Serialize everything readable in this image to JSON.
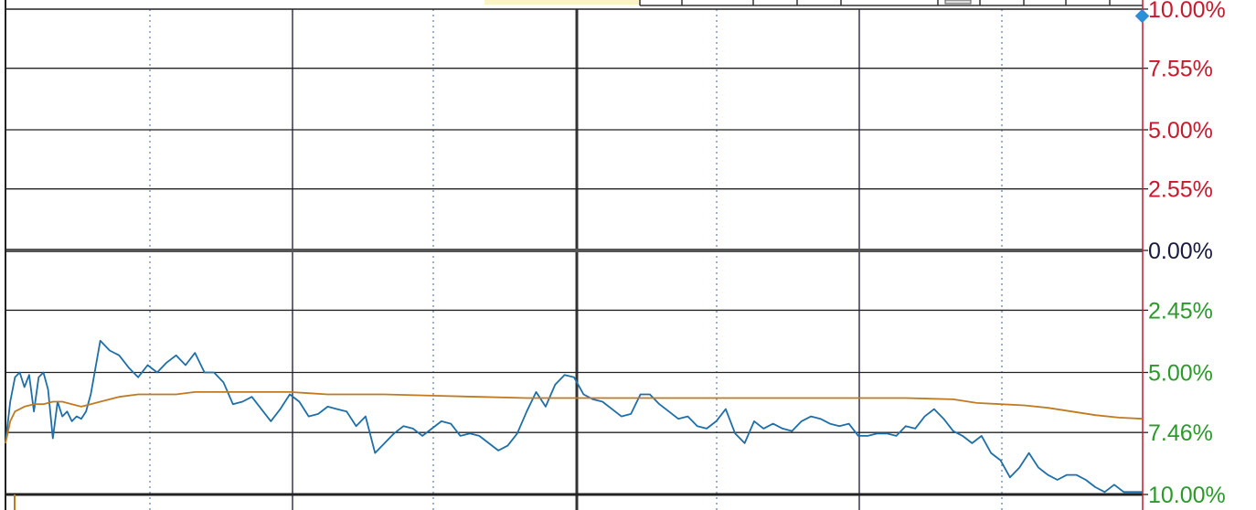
{
  "chart_data": {
    "type": "line",
    "title": "",
    "xlabel": "",
    "ylabel": "",
    "ylim": [
      -10,
      10
    ],
    "x_range": [
      0,
      240
    ],
    "y_tick_labels": [
      {
        "value": 10,
        "label": "10.00%",
        "color": "#c8192c"
      },
      {
        "value": 7.55,
        "label": "7.55%",
        "color": "#c8192c"
      },
      {
        "value": 5,
        "label": "5.00%",
        "color": "#c8192c"
      },
      {
        "value": 2.55,
        "label": "2.55%",
        "color": "#c8192c"
      },
      {
        "value": 0,
        "label": "0.00%",
        "color": "#1a1a40"
      },
      {
        "value": -2.45,
        "label": "2.45%",
        "color": "#2a9a2a"
      },
      {
        "value": -5,
        "label": "5.00%",
        "color": "#2a9a2a"
      },
      {
        "value": -7.46,
        "label": "7.46%",
        "color": "#2a9a2a"
      },
      {
        "value": -10,
        "label": "10.00%",
        "color": "#2a9a2a"
      }
    ],
    "grid": true,
    "series": [
      {
        "color": "#1e6ea8",
        "x": [
          0,
          1,
          2,
          3,
          4,
          5,
          6,
          7,
          8,
          9,
          10,
          11,
          12,
          13,
          14,
          15,
          16,
          17,
          18,
          19,
          20,
          22,
          24,
          26,
          28,
          30,
          32,
          34,
          36,
          38,
          40,
          42,
          44,
          46,
          48,
          50,
          52,
          54,
          56,
          58,
          60,
          62,
          64,
          66,
          68,
          70,
          72,
          74,
          76,
          78,
          80,
          82,
          84,
          86,
          88,
          90,
          92,
          94,
          96,
          98,
          100,
          102,
          104,
          106,
          108,
          110,
          112,
          114,
          116,
          118,
          120,
          122,
          124,
          126,
          128,
          130,
          132,
          134,
          136,
          138,
          140,
          142,
          144,
          146,
          148,
          150,
          152,
          154,
          156,
          158,
          160,
          162,
          164,
          166,
          168,
          170,
          172,
          174,
          176,
          178,
          180,
          182,
          184,
          186,
          188,
          190,
          192,
          194,
          196,
          198,
          200,
          202,
          204,
          206,
          208,
          210,
          212,
          214,
          216,
          218,
          220,
          222,
          224,
          226,
          228,
          230,
          232,
          234,
          236,
          238,
          240
        ],
        "y": [
          -7.9,
          -6.2,
          -5.2,
          -5.0,
          -5.6,
          -5.1,
          -6.6,
          -5.2,
          -5.0,
          -5.7,
          -7.7,
          -6.2,
          -6.8,
          -6.6,
          -7.0,
          -6.8,
          -6.9,
          -6.6,
          -5.9,
          -4.8,
          -3.7,
          -4.1,
          -4.3,
          -4.8,
          -5.2,
          -4.7,
          -5.0,
          -4.6,
          -4.3,
          -4.7,
          -4.2,
          -5.0,
          -5.0,
          -5.4,
          -6.3,
          -6.2,
          -6.0,
          -6.5,
          -7.0,
          -6.5,
          -5.9,
          -6.2,
          -6.8,
          -6.7,
          -6.4,
          -6.5,
          -6.6,
          -7.2,
          -6.8,
          -8.3,
          -7.9,
          -7.5,
          -7.2,
          -7.3,
          -7.6,
          -7.3,
          -7.0,
          -7.1,
          -7.6,
          -7.5,
          -7.6,
          -7.9,
          -8.2,
          -8.0,
          -7.5,
          -6.6,
          -5.8,
          -6.4,
          -5.5,
          -5.1,
          -5.2,
          -5.9,
          -6.1,
          -6.2,
          -6.5,
          -6.8,
          -6.7,
          -5.9,
          -5.9,
          -6.3,
          -6.6,
          -6.9,
          -6.8,
          -7.2,
          -7.3,
          -7.0,
          -6.5,
          -7.5,
          -7.9,
          -7.0,
          -7.3,
          -7.1,
          -7.3,
          -7.4,
          -7.0,
          -6.8,
          -6.9,
          -7.1,
          -7.2,
          -7.1,
          -7.6,
          -7.6,
          -7.5,
          -7.5,
          -7.6,
          -7.2,
          -7.3,
          -6.8,
          -6.5,
          -6.9,
          -7.4,
          -7.6,
          -7.9,
          -7.6,
          -8.3,
          -8.6,
          -9.3,
          -8.9,
          -8.3,
          -8.9,
          -9.2,
          -9.4,
          -9.2,
          -9.2,
          -9.4,
          -9.7,
          -9.9,
          -9.6,
          -9.9,
          -9.9,
          -9.9
        ]
      },
      {
        "color": "#c07a22",
        "x": [
          0,
          1,
          2,
          3,
          4,
          6,
          8,
          10,
          12,
          14,
          16,
          18,
          20,
          24,
          28,
          32,
          36,
          40,
          44,
          48,
          52,
          56,
          60,
          64,
          68,
          72,
          76,
          80,
          90,
          100,
          110,
          120,
          130,
          140,
          150,
          160,
          170,
          180,
          190,
          200,
          205,
          210,
          215,
          220,
          225,
          230,
          235,
          240
        ],
        "y": [
          -7.9,
          -7.0,
          -6.6,
          -6.5,
          -6.4,
          -6.3,
          -6.3,
          -6.2,
          -6.2,
          -6.3,
          -6.4,
          -6.3,
          -6.2,
          -6.0,
          -5.9,
          -5.9,
          -5.9,
          -5.8,
          -5.8,
          -5.8,
          -5.8,
          -5.8,
          -5.8,
          -5.85,
          -5.9,
          -5.9,
          -5.9,
          -5.9,
          -5.95,
          -6.0,
          -6.05,
          -6.05,
          -6.05,
          -6.05,
          -6.05,
          -6.05,
          -6.05,
          -6.05,
          -6.05,
          -6.1,
          -6.25,
          -6.3,
          -6.35,
          -6.45,
          -6.6,
          -6.75,
          -6.85,
          -6.9
        ]
      }
    ]
  }
}
